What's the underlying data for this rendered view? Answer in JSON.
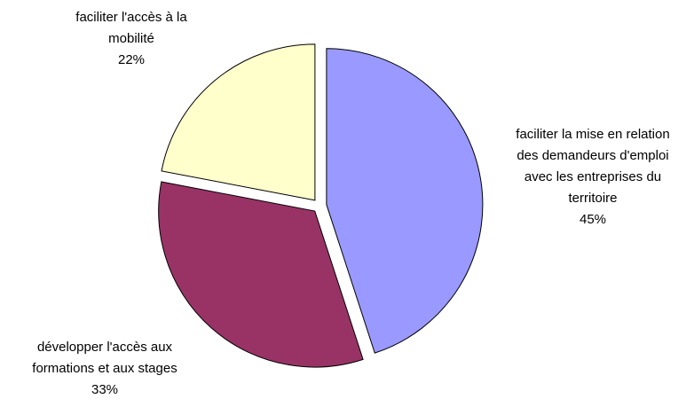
{
  "chart_data": {
    "type": "pie",
    "categories": [
      "faciliter la mise en relation\ndes demandeurs d'emploi\navec les entreprises du\nterritoire",
      "développer l'accès aux\nformations et aux stages",
      "faciliter l'accès à la\nmobilité"
    ],
    "values": [
      45,
      33,
      22
    ],
    "value_labels": [
      "45%",
      "33%",
      "22%"
    ],
    "colors": [
      "#9999ff",
      "#993366",
      "#ffffcc"
    ]
  }
}
